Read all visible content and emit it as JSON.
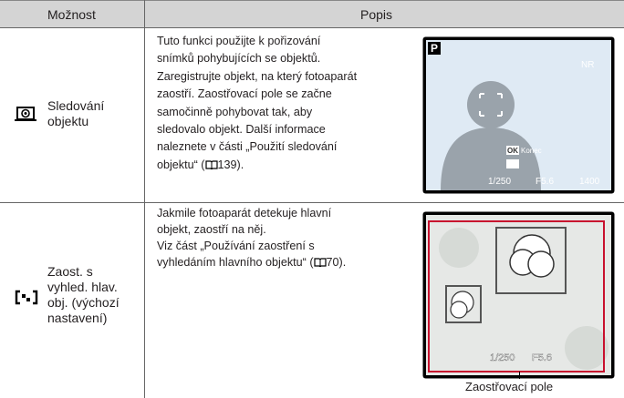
{
  "header": {
    "option": "Možnost",
    "description": "Popis"
  },
  "rows": [
    {
      "option_lines": [
        "Sledování",
        "objektu"
      ],
      "description_lines": [
        "Tuto funkci použijte k pořizování",
        "snímků pohybujících se objektů.",
        "Zaregistrujte objekt, na který fotoaparát",
        "zaostří. Zaostřovací pole se začne",
        "samočinně pohybovat tak, aby",
        "sledovalo objekt. Další informace",
        "naleznete v části „Použití sledování"
      ],
      "ref_prefix": "objektu“ (",
      "ref_page": "139",
      "ref_suffix": ").",
      "screen": {
        "mode": "P",
        "nr": "NR",
        "ok": "OK",
        "exit": "Konec",
        "shutter": "1/250",
        "aperture": "F5.6",
        "shots": "1400"
      }
    },
    {
      "option_lines": [
        "Zaost. s",
        "vyhled. hlav.",
        "obj. (výchozí",
        "nastavení)"
      ],
      "description_lines": [
        "Jakmile fotoaparát detekuje hlavní",
        "objekt, zaostří na něj.",
        "Viz část „Používání zaostření s"
      ],
      "ref_prefix": "vyhledáním hlavního objektu“ (",
      "ref_page": "70",
      "ref_suffix": ").",
      "screen": {
        "shutter": "1/250",
        "aperture": "F5.6"
      },
      "caption": "Zaostřovací pole"
    }
  ]
}
